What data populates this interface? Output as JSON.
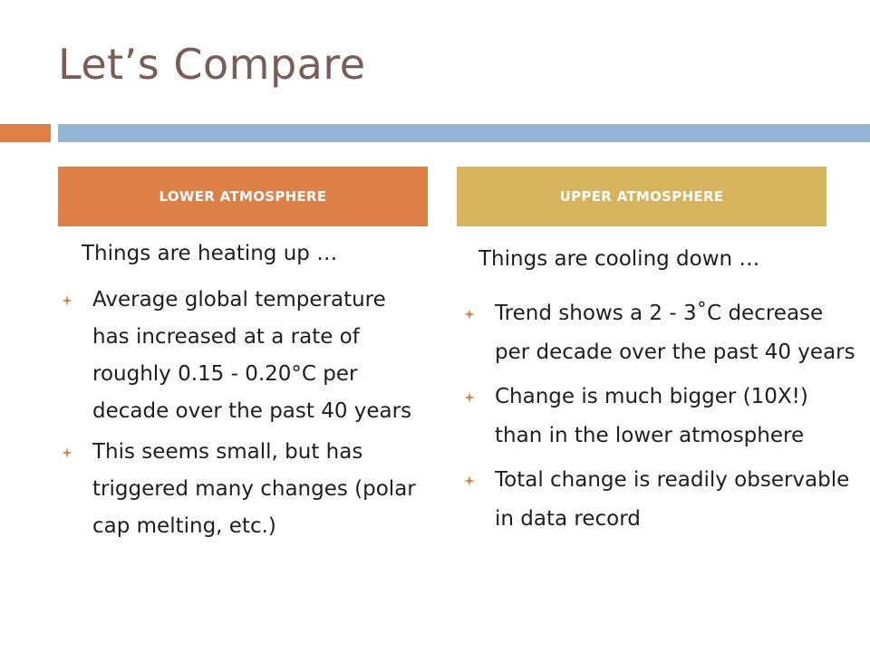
{
  "title": "Let’s Compare",
  "colors": {
    "accent_orange": "#dd8047",
    "accent_blue": "#94b6d2",
    "accent_gold": "#d6b35d",
    "title_color": "#7a5c58"
  },
  "left": {
    "header": "LOWER ATMOSPHERE",
    "lead": "Things are heating up …",
    "bullets": [
      "Average global temperature has increased at a rate of roughly 0.15 - 0.20°C per decade over the past 40 years",
      "This seems small, but has triggered many changes (polar cap melting, etc.)"
    ]
  },
  "right": {
    "header": "UPPER ATMOSPHERE",
    "lead": "Things are cooling down …",
    "bullets": [
      "Trend shows a 2 - 3˚C decrease per decade over the past 40 years",
      "Change is much bigger (10X!) than in the lower atmosphere",
      "Total change is readily observable in data record"
    ]
  },
  "bullet_icon": "diamond-bullet-icon"
}
